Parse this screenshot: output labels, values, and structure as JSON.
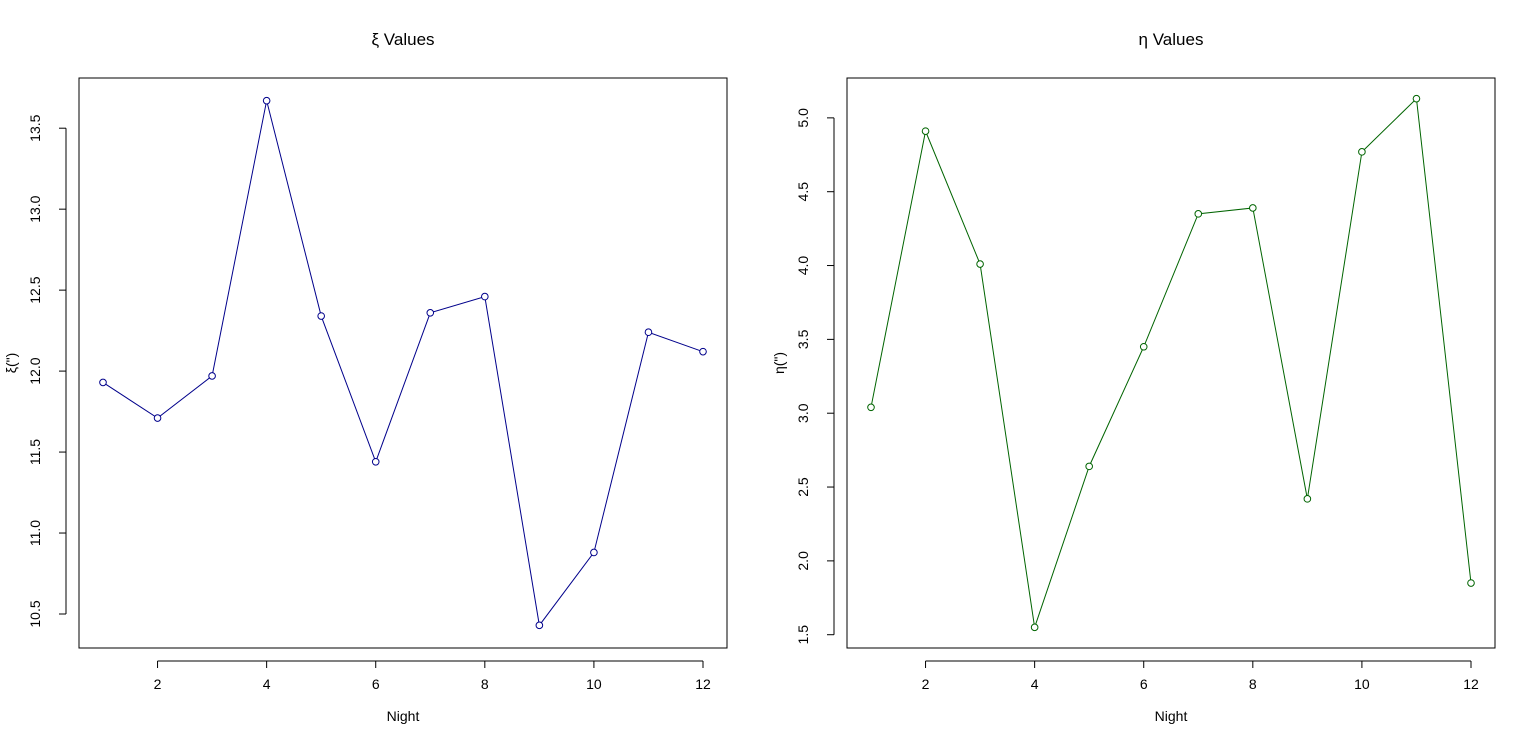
{
  "colors": {
    "xi_series": "#00008b",
    "eta_series": "#006400",
    "axis": "#000000",
    "background": "#ffffff"
  },
  "chart_data": [
    {
      "type": "line",
      "title": "ξ Values",
      "xlabel": "Night",
      "ylabel": "ξ(\")",
      "x": [
        1,
        2,
        3,
        4,
        5,
        6,
        7,
        8,
        9,
        10,
        11,
        12
      ],
      "values": [
        11.93,
        11.71,
        11.97,
        13.67,
        12.34,
        11.44,
        12.36,
        12.46,
        10.43,
        10.88,
        12.24,
        12.12
      ],
      "xlim": [
        0.56,
        12.44
      ],
      "ylim": [
        10.29,
        13.81
      ],
      "xticks": [
        2,
        4,
        6,
        8,
        10,
        12
      ],
      "xtick_labels": [
        "2",
        "4",
        "6",
        "8",
        "10",
        "12"
      ],
      "yticks": [
        10.5,
        11.0,
        11.5,
        12.0,
        12.5,
        13.0,
        13.5
      ],
      "ytick_labels": [
        "10.5",
        "11.0",
        "11.5",
        "12.0",
        "12.5",
        "13.0",
        "13.5"
      ],
      "markers": "open-circle",
      "grid": false,
      "color": "#00008b"
    },
    {
      "type": "line",
      "title": "η Values",
      "xlabel": "Night",
      "ylabel": "η(\")",
      "x": [
        1,
        2,
        3,
        4,
        5,
        6,
        7,
        8,
        9,
        10,
        11,
        12
      ],
      "values": [
        3.04,
        4.91,
        4.01,
        1.55,
        2.64,
        3.45,
        4.35,
        4.39,
        2.42,
        4.77,
        5.13,
        1.85
      ],
      "xlim": [
        0.56,
        12.44
      ],
      "ylim": [
        1.41,
        5.27
      ],
      "xticks": [
        2,
        4,
        6,
        8,
        10,
        12
      ],
      "xtick_labels": [
        "2",
        "4",
        "6",
        "8",
        "10",
        "12"
      ],
      "yticks": [
        1.5,
        2.0,
        2.5,
        3.0,
        3.5,
        4.0,
        4.5,
        5.0
      ],
      "ytick_labels": [
        "1.5",
        "2.0",
        "2.5",
        "3.0",
        "3.5",
        "4.0",
        "4.5",
        "5.0"
      ],
      "markers": "open-circle",
      "grid": false,
      "color": "#006400"
    }
  ]
}
